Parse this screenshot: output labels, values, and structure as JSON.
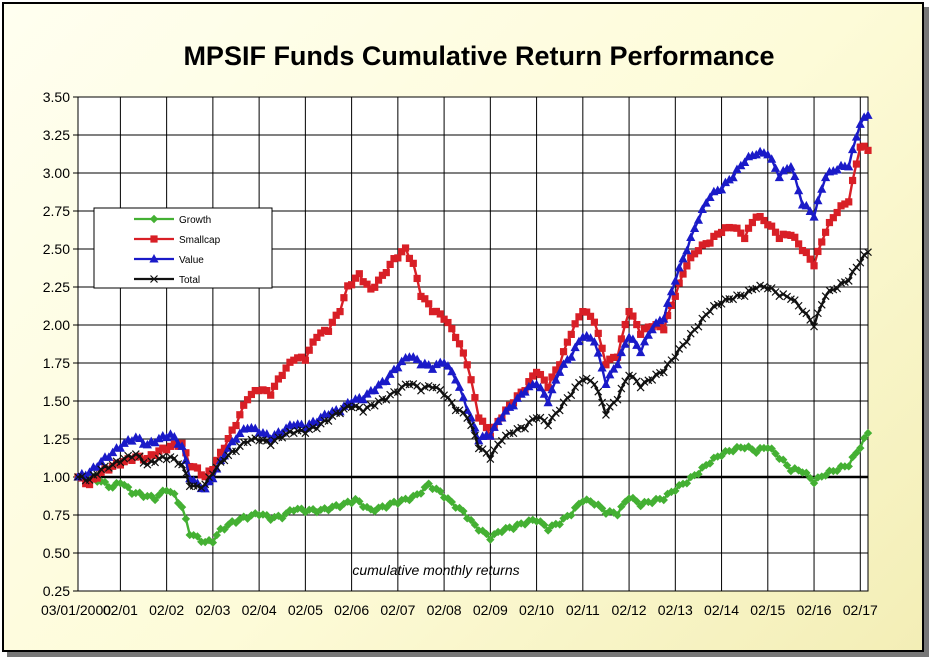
{
  "chart_data": {
    "type": "line",
    "title": "MPSIF Funds Cumulative Return Performance",
    "annotation": "cumulative monthly returns",
    "xlabel": "",
    "ylabel": "",
    "ylim": [
      0.25,
      3.5
    ],
    "yticks": [
      "0.25",
      "0.50",
      "0.75",
      "1.00",
      "1.25",
      "1.50",
      "1.75",
      "2.00",
      "2.25",
      "2.50",
      "2.75",
      "3.00",
      "3.25",
      "3.50"
    ],
    "x_range": [
      "03/01/2000",
      "04/2017"
    ],
    "xtick_labels": [
      "03/01/2000",
      "02/01",
      "02/02",
      "02/03",
      "02/04",
      "02/05",
      "02/06",
      "02/07",
      "02/08",
      "02/09",
      "02/10",
      "02/11",
      "02/12",
      "02/13",
      "02/14",
      "02/15",
      "02/16",
      "02/17"
    ],
    "grid": true,
    "legend_position": "left",
    "series": [
      {
        "name": "Growth",
        "color": "#44b033",
        "marker": "diamond",
        "points": [
          [
            "03/2000",
            1.0
          ],
          [
            "06/2000",
            1.0
          ],
          [
            "09/2000",
            0.97
          ],
          [
            "12/2000",
            0.93
          ],
          [
            "02/2001",
            0.97
          ],
          [
            "05/2001",
            0.9
          ],
          [
            "08/2001",
            0.88
          ],
          [
            "11/2001",
            0.86
          ],
          [
            "02/2002",
            0.92
          ],
          [
            "04/2002",
            0.88
          ],
          [
            "06/2002",
            0.8
          ],
          [
            "08/2002",
            0.63
          ],
          [
            "10/2002",
            0.6
          ],
          [
            "12/2002",
            0.57
          ],
          [
            "02/2003",
            0.58
          ],
          [
            "04/2003",
            0.65
          ],
          [
            "07/2003",
            0.7
          ],
          [
            "10/2003",
            0.73
          ],
          [
            "02/2004",
            0.76
          ],
          [
            "05/2004",
            0.73
          ],
          [
            "08/2004",
            0.74
          ],
          [
            "11/2004",
            0.79
          ],
          [
            "02/2005",
            0.78
          ],
          [
            "06/2005",
            0.78
          ],
          [
            "09/2005",
            0.8
          ],
          [
            "12/2005",
            0.82
          ],
          [
            "03/2006",
            0.85
          ],
          [
            "07/2006",
            0.78
          ],
          [
            "10/2006",
            0.8
          ],
          [
            "01/2007",
            0.83
          ],
          [
            "04/2007",
            0.85
          ],
          [
            "07/2007",
            0.88
          ],
          [
            "10/2007",
            0.95
          ],
          [
            "01/2008",
            0.9
          ],
          [
            "04/2008",
            0.83
          ],
          [
            "07/2008",
            0.77
          ],
          [
            "10/2008",
            0.68
          ],
          [
            "02/2009",
            0.6
          ],
          [
            "05/2009",
            0.65
          ],
          [
            "08/2009",
            0.67
          ],
          [
            "11/2009",
            0.7
          ],
          [
            "02/2010",
            0.72
          ],
          [
            "05/2010",
            0.66
          ],
          [
            "08/2010",
            0.7
          ],
          [
            "11/2010",
            0.76
          ],
          [
            "02/2011",
            0.85
          ],
          [
            "05/2011",
            0.83
          ],
          [
            "08/2011",
            0.77
          ],
          [
            "11/2011",
            0.76
          ],
          [
            "02/2012",
            0.87
          ],
          [
            "05/2012",
            0.82
          ],
          [
            "08/2012",
            0.84
          ],
          [
            "11/2012",
            0.86
          ],
          [
            "02/2013",
            0.92
          ],
          [
            "05/2013",
            0.97
          ],
          [
            "08/2013",
            1.03
          ],
          [
            "11/2013",
            1.1
          ],
          [
            "02/2014",
            1.15
          ],
          [
            "05/2014",
            1.18
          ],
          [
            "08/2014",
            1.2
          ],
          [
            "11/2014",
            1.17
          ],
          [
            "02/2015",
            1.2
          ],
          [
            "05/2015",
            1.13
          ],
          [
            "08/2015",
            1.05
          ],
          [
            "11/2015",
            1.04
          ],
          [
            "02/2016",
            0.97
          ],
          [
            "05/2016",
            1.02
          ],
          [
            "08/2016",
            1.05
          ],
          [
            "11/2016",
            1.08
          ],
          [
            "02/2017",
            1.2
          ],
          [
            "04/2017",
            1.29
          ]
        ]
      },
      {
        "name": "Smallcap",
        "color": "#d81f26",
        "marker": "square",
        "points": [
          [
            "03/2000",
            1.0
          ],
          [
            "06/2000",
            0.95
          ],
          [
            "09/2000",
            1.03
          ],
          [
            "12/2000",
            1.07
          ],
          [
            "03/2001",
            1.1
          ],
          [
            "06/2001",
            1.13
          ],
          [
            "09/2001",
            1.12
          ],
          [
            "12/2001",
            1.17
          ],
          [
            "03/2002",
            1.2
          ],
          [
            "06/2002",
            1.22
          ],
          [
            "08/2002",
            1.08
          ],
          [
            "10/2002",
            1.05
          ],
          [
            "12/2002",
            1.0
          ],
          [
            "02/2003",
            1.06
          ],
          [
            "05/2003",
            1.2
          ],
          [
            "08/2003",
            1.35
          ],
          [
            "11/2003",
            1.52
          ],
          [
            "02/2004",
            1.58
          ],
          [
            "05/2004",
            1.55
          ],
          [
            "08/2004",
            1.68
          ],
          [
            "11/2004",
            1.78
          ],
          [
            "02/2005",
            1.78
          ],
          [
            "05/2005",
            1.93
          ],
          [
            "08/2005",
            1.97
          ],
          [
            "11/2005",
            2.1
          ],
          [
            "01/2006",
            2.25
          ],
          [
            "04/2006",
            2.33
          ],
          [
            "07/2006",
            2.23
          ],
          [
            "10/2006",
            2.32
          ],
          [
            "01/2007",
            2.43
          ],
          [
            "04/2007",
            2.5
          ],
          [
            "06/2007",
            2.4
          ],
          [
            "08/2007",
            2.2
          ],
          [
            "11/2007",
            2.1
          ],
          [
            "02/2008",
            2.05
          ],
          [
            "05/2008",
            1.93
          ],
          [
            "08/2008",
            1.75
          ],
          [
            "11/2008",
            1.4
          ],
          [
            "02/2009",
            1.28
          ],
          [
            "05/2009",
            1.4
          ],
          [
            "08/2009",
            1.5
          ],
          [
            "11/2009",
            1.58
          ],
          [
            "02/2010",
            1.7
          ],
          [
            "05/2010",
            1.6
          ],
          [
            "08/2010",
            1.75
          ],
          [
            "11/2010",
            1.95
          ],
          [
            "02/2011",
            2.1
          ],
          [
            "05/2011",
            2.03
          ],
          [
            "08/2011",
            1.75
          ],
          [
            "11/2011",
            1.8
          ],
          [
            "02/2012",
            2.1
          ],
          [
            "05/2012",
            1.95
          ],
          [
            "08/2012",
            2.0
          ],
          [
            "11/2012",
            1.98
          ],
          [
            "02/2013",
            2.2
          ],
          [
            "05/2013",
            2.4
          ],
          [
            "08/2013",
            2.5
          ],
          [
            "11/2013",
            2.55
          ],
          [
            "02/2014",
            2.62
          ],
          [
            "05/2014",
            2.65
          ],
          [
            "08/2014",
            2.58
          ],
          [
            "11/2014",
            2.72
          ],
          [
            "02/2015",
            2.67
          ],
          [
            "05/2015",
            2.58
          ],
          [
            "08/2015",
            2.6
          ],
          [
            "11/2015",
            2.5
          ],
          [
            "02/2016",
            2.4
          ],
          [
            "05/2016",
            2.62
          ],
          [
            "08/2016",
            2.75
          ],
          [
            "11/2016",
            2.82
          ],
          [
            "02/2017",
            3.18
          ],
          [
            "04/2017",
            3.15
          ]
        ]
      },
      {
        "name": "Value",
        "color": "#1a1ac8",
        "marker": "triangle",
        "points": [
          [
            "03/2000",
            1.0
          ],
          [
            "06/2000",
            1.03
          ],
          [
            "09/2000",
            1.1
          ],
          [
            "12/2000",
            1.16
          ],
          [
            "03/2001",
            1.22
          ],
          [
            "06/2001",
            1.26
          ],
          [
            "09/2001",
            1.21
          ],
          [
            "12/2001",
            1.25
          ],
          [
            "03/2002",
            1.28
          ],
          [
            "06/2002",
            1.2
          ],
          [
            "08/2002",
            1.0
          ],
          [
            "10/2002",
            0.95
          ],
          [
            "12/2002",
            0.92
          ],
          [
            "02/2003",
            1.0
          ],
          [
            "05/2003",
            1.15
          ],
          [
            "08/2003",
            1.26
          ],
          [
            "11/2003",
            1.33
          ],
          [
            "02/2004",
            1.3
          ],
          [
            "05/2004",
            1.26
          ],
          [
            "08/2004",
            1.3
          ],
          [
            "11/2004",
            1.35
          ],
          [
            "02/2005",
            1.33
          ],
          [
            "05/2005",
            1.37
          ],
          [
            "08/2005",
            1.42
          ],
          [
            "11/2005",
            1.44
          ],
          [
            "02/2006",
            1.5
          ],
          [
            "05/2006",
            1.52
          ],
          [
            "08/2006",
            1.58
          ],
          [
            "11/2006",
            1.64
          ],
          [
            "02/2007",
            1.73
          ],
          [
            "05/2007",
            1.8
          ],
          [
            "08/2007",
            1.75
          ],
          [
            "11/2007",
            1.72
          ],
          [
            "02/2008",
            1.76
          ],
          [
            "05/2008",
            1.65
          ],
          [
            "08/2008",
            1.45
          ],
          [
            "11/2008",
            1.25
          ],
          [
            "02/2009",
            1.28
          ],
          [
            "05/2009",
            1.4
          ],
          [
            "08/2009",
            1.48
          ],
          [
            "11/2009",
            1.57
          ],
          [
            "02/2010",
            1.62
          ],
          [
            "05/2010",
            1.5
          ],
          [
            "08/2010",
            1.7
          ],
          [
            "11/2010",
            1.8
          ],
          [
            "02/2011",
            1.93
          ],
          [
            "05/2011",
            1.9
          ],
          [
            "08/2011",
            1.62
          ],
          [
            "11/2011",
            1.75
          ],
          [
            "02/2012",
            1.93
          ],
          [
            "05/2012",
            1.83
          ],
          [
            "08/2012",
            1.98
          ],
          [
            "11/2012",
            2.05
          ],
          [
            "02/2013",
            2.3
          ],
          [
            "05/2013",
            2.5
          ],
          [
            "08/2013",
            2.7
          ],
          [
            "11/2013",
            2.85
          ],
          [
            "02/2014",
            2.9
          ],
          [
            "05/2014",
            2.98
          ],
          [
            "08/2014",
            3.08
          ],
          [
            "11/2014",
            3.13
          ],
          [
            "02/2015",
            3.13
          ],
          [
            "05/2015",
            2.98
          ],
          [
            "08/2015",
            3.05
          ],
          [
            "11/2015",
            2.8
          ],
          [
            "02/2016",
            2.72
          ],
          [
            "05/2016",
            2.98
          ],
          [
            "08/2016",
            3.03
          ],
          [
            "11/2016",
            3.05
          ],
          [
            "02/2017",
            3.33
          ],
          [
            "04/2017",
            3.38
          ]
        ]
      },
      {
        "name": "Total",
        "color": "#111111",
        "marker": "x",
        "points": [
          [
            "03/2000",
            1.0
          ],
          [
            "06/2000",
            0.98
          ],
          [
            "09/2000",
            1.05
          ],
          [
            "12/2000",
            1.08
          ],
          [
            "03/2001",
            1.12
          ],
          [
            "06/2001",
            1.15
          ],
          [
            "09/2001",
            1.08
          ],
          [
            "12/2001",
            1.12
          ],
          [
            "03/2002",
            1.13
          ],
          [
            "06/2002",
            1.08
          ],
          [
            "08/2002",
            0.95
          ],
          [
            "10/2002",
            0.93
          ],
          [
            "12/2002",
            0.95
          ],
          [
            "02/2003",
            1.03
          ],
          [
            "05/2003",
            1.12
          ],
          [
            "08/2003",
            1.18
          ],
          [
            "11/2003",
            1.24
          ],
          [
            "02/2004",
            1.25
          ],
          [
            "05/2004",
            1.22
          ],
          [
            "08/2004",
            1.27
          ],
          [
            "11/2004",
            1.3
          ],
          [
            "02/2005",
            1.3
          ],
          [
            "05/2005",
            1.33
          ],
          [
            "08/2005",
            1.38
          ],
          [
            "11/2005",
            1.43
          ],
          [
            "02/2006",
            1.47
          ],
          [
            "05/2006",
            1.44
          ],
          [
            "08/2006",
            1.48
          ],
          [
            "11/2006",
            1.52
          ],
          [
            "02/2007",
            1.57
          ],
          [
            "05/2007",
            1.62
          ],
          [
            "08/2007",
            1.58
          ],
          [
            "11/2007",
            1.6
          ],
          [
            "02/2008",
            1.55
          ],
          [
            "05/2008",
            1.45
          ],
          [
            "08/2008",
            1.4
          ],
          [
            "11/2008",
            1.2
          ],
          [
            "02/2009",
            1.13
          ],
          [
            "05/2009",
            1.25
          ],
          [
            "08/2009",
            1.3
          ],
          [
            "11/2009",
            1.33
          ],
          [
            "02/2010",
            1.4
          ],
          [
            "05/2010",
            1.35
          ],
          [
            "08/2010",
            1.45
          ],
          [
            "11/2010",
            1.55
          ],
          [
            "02/2011",
            1.65
          ],
          [
            "05/2011",
            1.62
          ],
          [
            "08/2011",
            1.42
          ],
          [
            "11/2011",
            1.52
          ],
          [
            "02/2012",
            1.68
          ],
          [
            "05/2012",
            1.6
          ],
          [
            "08/2012",
            1.65
          ],
          [
            "11/2012",
            1.7
          ],
          [
            "02/2013",
            1.8
          ],
          [
            "05/2013",
            1.9
          ],
          [
            "08/2013",
            2.0
          ],
          [
            "11/2013",
            2.1
          ],
          [
            "02/2014",
            2.15
          ],
          [
            "05/2014",
            2.18
          ],
          [
            "08/2014",
            2.2
          ],
          [
            "11/2014",
            2.25
          ],
          [
            "02/2015",
            2.25
          ],
          [
            "05/2015",
            2.2
          ],
          [
            "08/2015",
            2.18
          ],
          [
            "11/2015",
            2.1
          ],
          [
            "02/2016",
            2.0
          ],
          [
            "05/2016",
            2.2
          ],
          [
            "08/2016",
            2.25
          ],
          [
            "11/2016",
            2.3
          ],
          [
            "02/2017",
            2.42
          ],
          [
            "04/2017",
            2.48
          ]
        ]
      }
    ]
  }
}
